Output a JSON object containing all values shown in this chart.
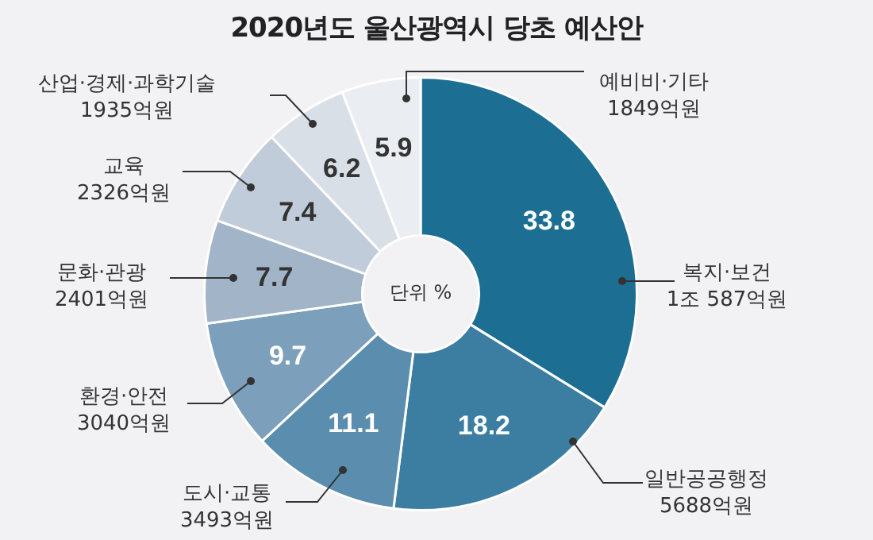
{
  "chart_data": {
    "type": "donut",
    "title": "2020년도 울산광역시 당초 예산안",
    "categories": [
      "복지·보건\n1조 587억원",
      "일반공공행정\n5688억원",
      "도시·교통\n3493억원",
      "환경·안전\n3040억원",
      "문화·관광\n2401억원",
      "교육\n2326억원",
      "산업·경제·과학기술\n1935억원",
      "예비비·기타\n1849억원"
    ],
    "values": [
      33.8,
      18.2,
      11.1,
      9.7,
      7.7,
      7.4,
      6.2,
      5.9
    ],
    "colors": [
      "#1c6f93",
      "#3b7ea1",
      "#5a8dae",
      "#7c9fbb",
      "#a2b4c8",
      "#c0ccd9",
      "#d9dfe7",
      "#eaedf1"
    ],
    "data_labels": true,
    "legend": false,
    "annotations": [
      "단위 %"
    ]
  }
}
